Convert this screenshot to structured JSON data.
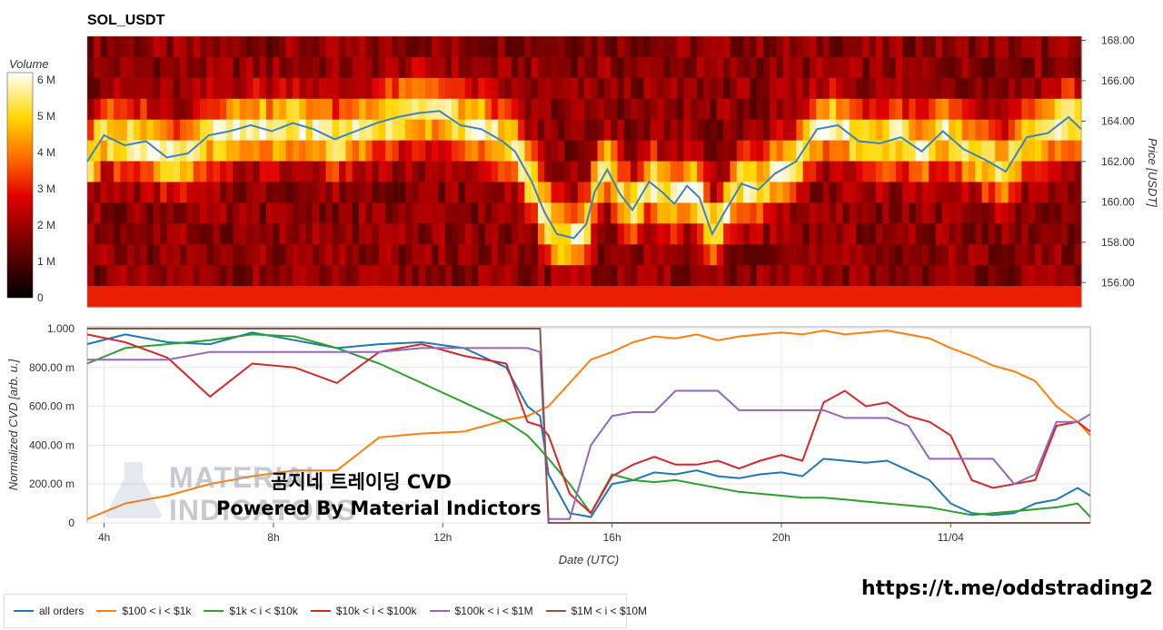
{
  "title": "SOL_USDT",
  "colorbar": {
    "label": "Volume",
    "ticks": [
      "0",
      "1 M",
      "2 M",
      "3 M",
      "4 M",
      "5 M",
      "6 M"
    ],
    "max": 6.2
  },
  "watermark": {
    "line1": "곰지네 트레이딩 CVD",
    "line2": "Powered By Material Indictors",
    "logo_text_1": "MATERIAL",
    "logo_text_2": "INDICATORS"
  },
  "link_text": "https://t.me/oddstrading2",
  "chart_data": [
    {
      "type": "heatmap",
      "title": "SOL_USDT",
      "ylabel": "Price [USDT]",
      "ylim": [
        154.8,
        168.2
      ],
      "y_ticks": [
        "156.00",
        "158.00",
        "160.00",
        "162.00",
        "164.00",
        "166.00",
        "168.00"
      ],
      "x_ticks": [
        "4h",
        "8h",
        "12h",
        "16h",
        "20h",
        "11/04"
      ],
      "x_range_hours": [
        3.6,
        27.3
      ],
      "price_line_color": "#3a84c4",
      "price_line": {
        "t": [
          3.6,
          4.0,
          4.5,
          5.0,
          5.5,
          6.0,
          6.5,
          7.0,
          7.5,
          8.0,
          8.5,
          9.0,
          9.5,
          10.0,
          10.5,
          11.0,
          11.5,
          12.0,
          12.5,
          13.0,
          13.5,
          13.8,
          14.2,
          14.5,
          14.8,
          15.2,
          15.5,
          15.7,
          16.0,
          16.3,
          16.6,
          17.0,
          17.3,
          17.6,
          17.9,
          18.2,
          18.5,
          18.8,
          19.2,
          19.6,
          20.0,
          20.5,
          21.0,
          21.5,
          22.0,
          22.5,
          23.0,
          23.5,
          24.0,
          24.5,
          25.0,
          25.5,
          26.0,
          26.5,
          27.0,
          27.3
        ],
        "price": [
          162.0,
          163.3,
          162.8,
          163.0,
          162.2,
          162.4,
          163.3,
          163.5,
          163.8,
          163.5,
          163.9,
          163.6,
          163.1,
          163.5,
          163.9,
          164.2,
          164.4,
          164.5,
          163.8,
          163.6,
          163.0,
          162.5,
          161.0,
          159.5,
          158.4,
          158.2,
          158.9,
          160.5,
          161.6,
          160.4,
          159.6,
          161.0,
          160.5,
          159.9,
          160.8,
          160.2,
          158.4,
          159.5,
          160.9,
          160.6,
          161.4,
          162.0,
          163.6,
          163.8,
          163.0,
          162.9,
          163.2,
          162.5,
          163.5,
          162.6,
          162.1,
          161.5,
          163.2,
          163.4,
          164.2,
          163.6
        ]
      }
    },
    {
      "type": "line",
      "xlabel": "Date (UTC)",
      "ylabel": "Normalized CVD [arb. u.]",
      "ylim": [
        0,
        1
      ],
      "y_ticks": [
        "0",
        "200.00 m",
        "400.00 m",
        "600.00 m",
        "800.00 m",
        "1.000"
      ],
      "x_ticks": [
        "4h",
        "8h",
        "12h",
        "16h",
        "20h",
        "11/04"
      ],
      "x": [
        3.6,
        4.5,
        5.5,
        6.5,
        7.5,
        8.5,
        9.5,
        10.5,
        11.5,
        12.5,
        13.5,
        14.0,
        14.3,
        14.5,
        15.0,
        15.5,
        16.0,
        16.5,
        17.0,
        17.5,
        18.0,
        18.5,
        19.0,
        19.5,
        20.0,
        20.5,
        21.0,
        21.5,
        22.0,
        22.5,
        23.0,
        23.5,
        24.0,
        24.5,
        25.0,
        25.5,
        26.0,
        26.5,
        27.0,
        27.3
      ],
      "series": [
        {
          "name": "all orders",
          "color": "#1f77b4",
          "values": [
            0.92,
            0.97,
            0.93,
            0.92,
            0.98,
            0.94,
            0.9,
            0.92,
            0.93,
            0.9,
            0.8,
            0.6,
            0.55,
            0.25,
            0.05,
            0.03,
            0.2,
            0.22,
            0.26,
            0.25,
            0.27,
            0.24,
            0.23,
            0.25,
            0.26,
            0.24,
            0.33,
            0.32,
            0.31,
            0.32,
            0.27,
            0.22,
            0.1,
            0.05,
            0.04,
            0.05,
            0.1,
            0.12,
            0.18,
            0.14
          ]
        },
        {
          "name": "$100 < i < $1k",
          "color": "#ff7f0e",
          "values": [
            0.02,
            0.1,
            0.14,
            0.2,
            0.24,
            0.27,
            0.27,
            0.44,
            0.46,
            0.47,
            0.53,
            0.55,
            0.58,
            0.6,
            0.72,
            0.84,
            0.88,
            0.93,
            0.96,
            0.95,
            0.97,
            0.94,
            0.96,
            0.97,
            0.98,
            0.97,
            0.99,
            0.97,
            0.98,
            0.99,
            0.97,
            0.95,
            0.9,
            0.86,
            0.81,
            0.78,
            0.73,
            0.6,
            0.52,
            0.45
          ]
        },
        {
          "name": "$1k < i < $10k",
          "color": "#2ca02c",
          "values": [
            0.82,
            0.9,
            0.92,
            0.94,
            0.97,
            0.96,
            0.9,
            0.82,
            0.72,
            0.62,
            0.52,
            0.45,
            0.38,
            0.33,
            0.2,
            0.05,
            0.25,
            0.22,
            0.21,
            0.22,
            0.2,
            0.18,
            0.16,
            0.15,
            0.14,
            0.13,
            0.13,
            0.12,
            0.11,
            0.1,
            0.09,
            0.08,
            0.06,
            0.04,
            0.05,
            0.06,
            0.07,
            0.08,
            0.1,
            0.03
          ]
        },
        {
          "name": "$10k < i < $100k",
          "color": "#d62728",
          "values": [
            0.97,
            0.93,
            0.85,
            0.65,
            0.82,
            0.8,
            0.72,
            0.88,
            0.92,
            0.86,
            0.82,
            0.52,
            0.5,
            0.45,
            0.15,
            0.05,
            0.24,
            0.3,
            0.34,
            0.3,
            0.3,
            0.32,
            0.28,
            0.32,
            0.35,
            0.32,
            0.62,
            0.68,
            0.6,
            0.62,
            0.55,
            0.52,
            0.45,
            0.22,
            0.18,
            0.2,
            0.22,
            0.5,
            0.52,
            0.47
          ]
        },
        {
          "name": "$100k < i < $1M",
          "color": "#9467bd",
          "values": [
            0.84,
            0.84,
            0.84,
            0.88,
            0.88,
            0.88,
            0.88,
            0.88,
            0.9,
            0.9,
            0.9,
            0.9,
            0.88,
            0.02,
            0.02,
            0.4,
            0.55,
            0.57,
            0.57,
            0.68,
            0.68,
            0.68,
            0.58,
            0.58,
            0.58,
            0.58,
            0.58,
            0.54,
            0.54,
            0.54,
            0.5,
            0.33,
            0.33,
            0.33,
            0.33,
            0.2,
            0.25,
            0.52,
            0.52,
            0.56
          ]
        },
        {
          "name": "$1M < i < $10M",
          "color": "#8c564b",
          "values": [
            1.0,
            1.0,
            1.0,
            1.0,
            1.0,
            1.0,
            1.0,
            1.0,
            1.0,
            1.0,
            1.0,
            1.0,
            1.0,
            0.0,
            0.0,
            0.0,
            0.0,
            0.0,
            0.0,
            0.0,
            0.0,
            0.0,
            0.0,
            0.0,
            0.0,
            0.0,
            0.0,
            0.0,
            0.0,
            0.0,
            0.0,
            0.0,
            0.0,
            0.0,
            0.0,
            0.0,
            0.0,
            0.0,
            0.0,
            0.0
          ]
        }
      ]
    }
  ]
}
